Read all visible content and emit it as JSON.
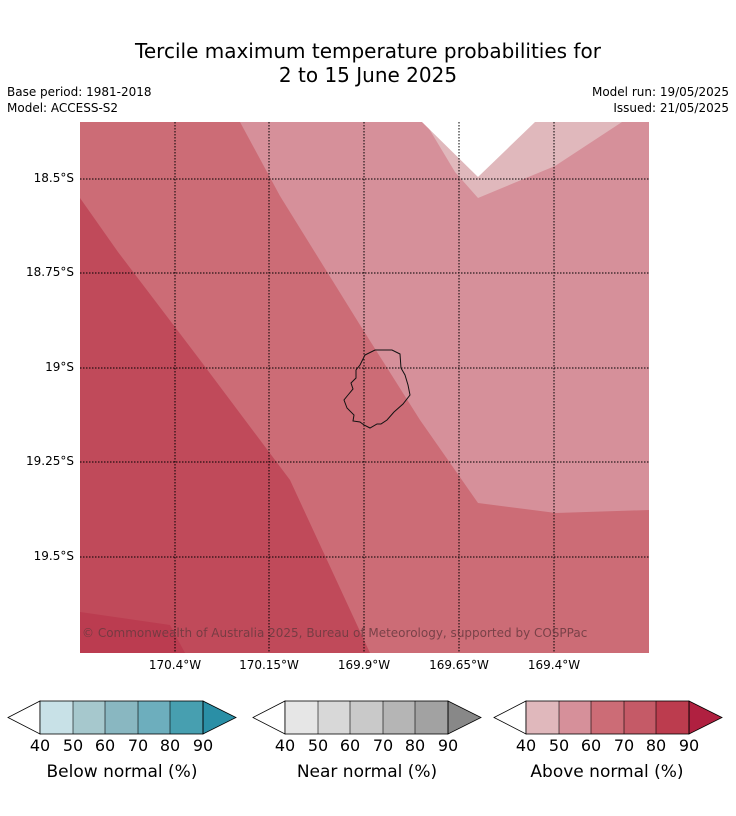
{
  "title": {
    "line1": "Tercile maximum temperature probabilities for",
    "line2": "2 to 15 June 2025"
  },
  "meta": {
    "base_period": "Base period: 1981-2018",
    "model": "Model: ACCESS-S2",
    "model_run": "Model run: 19/05/2025",
    "issued": "Issued: 21/05/2025"
  },
  "map": {
    "lat_labels": [
      "18.5°S",
      "18.75°S",
      "19°S",
      "19.25°S",
      "19.5°S"
    ],
    "lon_labels": [
      "170.4°W",
      "170.15°W",
      "169.9°W",
      "169.65°W",
      "169.4°W"
    ],
    "copyright": "© Commonwealth of Australia 2025, Bureau of Meteorology, supported by COSPPac",
    "island_icon": "niue-coastline"
  },
  "colorbars": [
    {
      "label": "Below normal (%)",
      "ticks": [
        "40",
        "50",
        "60",
        "70",
        "80",
        "90"
      ],
      "colors": [
        "#c8e1e7",
        "#a6c8cd",
        "#89b7c1",
        "#6daebd",
        "#479fb0",
        "#2a8fa6"
      ]
    },
    {
      "label": "Near normal (%)",
      "ticks": [
        "40",
        "50",
        "60",
        "70",
        "80",
        "90"
      ],
      "colors": [
        "#e6e6e6",
        "#d8d8d8",
        "#c9c9c9",
        "#b5b5b5",
        "#a2a2a2",
        "#888888"
      ]
    },
    {
      "label": "Above normal (%)",
      "ticks": [
        "40",
        "50",
        "60",
        "70",
        "80",
        "90"
      ],
      "colors": [
        "#e0b8bc",
        "#d6909a",
        "#cc6c76",
        "#c55a67",
        "#bc3c4e",
        "#b02040"
      ]
    }
  ]
}
